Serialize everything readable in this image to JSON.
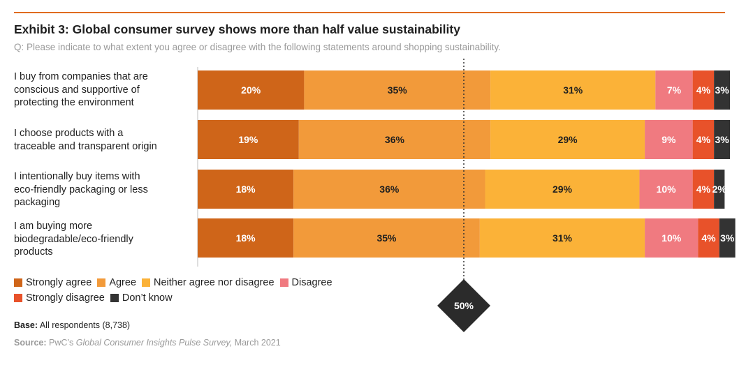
{
  "header": {
    "title": "Exhibit 3: Global consumer survey shows more than half value sustainability",
    "subtitle": "Q: Please indicate to what extent you agree or disagree with the following statements around shopping sustainability."
  },
  "chart_data": {
    "type": "bar",
    "stacked": true,
    "orientation": "horizontal",
    "categories": [
      "I buy from companies that are conscious and supportive of protecting the environment",
      "I choose products with a traceable and transparent origin",
      "I intentionally buy items with eco-friendly packaging or less packaging",
      "I am buying more biodegradable/eco-friendly products"
    ],
    "series": [
      {
        "name": "Strongly agree",
        "color": "#cf6519",
        "values": [
          20,
          19,
          18,
          18
        ]
      },
      {
        "name": "Agree",
        "color": "#f29a3a",
        "values": [
          35,
          36,
          36,
          35
        ]
      },
      {
        "name": "Neither agree nor disagree",
        "color": "#fbb238",
        "values": [
          31,
          29,
          29,
          31
        ]
      },
      {
        "name": "Disagree",
        "color": "#f07a80",
        "values": [
          7,
          9,
          10,
          10
        ]
      },
      {
        "name": "Strongly disagree",
        "color": "#e8522a",
        "values": [
          4,
          4,
          4,
          4
        ]
      },
      {
        "name": "Don’t know",
        "color": "#333333",
        "values": [
          3,
          3,
          2,
          3
        ]
      }
    ],
    "data_labels": [
      [
        "20%",
        "35%",
        "31%",
        "7%",
        "4%",
        "3%"
      ],
      [
        "19%",
        "36%",
        "29%",
        "9%",
        "4%",
        "3%"
      ],
      [
        "18%",
        "36%",
        "29%",
        "10%",
        "4%",
        "2%"
      ],
      [
        "18%",
        "35%",
        "31%",
        "10%",
        "4%",
        "3%"
      ]
    ],
    "reference_line": {
      "value": 50,
      "label": "50%"
    },
    "legend_position": "bottom-left",
    "grid": false
  },
  "row_labels": [
    [
      "I buy from companies that are",
      "conscious and supportive of",
      "protecting the environment"
    ],
    [
      "I choose products with a",
      "traceable and transparent origin"
    ],
    [
      "I intentionally buy items with",
      "eco-friendly packaging or less",
      "packaging"
    ],
    [
      "I am buying more",
      "biodegradable/eco-friendly",
      "products"
    ]
  ],
  "legend": {
    "row1": [
      {
        "label": "Strongly agree",
        "color": "#cf6519"
      },
      {
        "label": "Agree",
        "color": "#f29a3a"
      },
      {
        "label": "Neither agree nor disagree",
        "color": "#fbb238"
      },
      {
        "label": "Disagree",
        "color": "#f07a80"
      }
    ],
    "row2": [
      {
        "label": "Strongly disagree",
        "color": "#e8522a"
      },
      {
        "label": "Don’t know",
        "color": "#333333"
      }
    ]
  },
  "footer": {
    "base_label": "Base:",
    "base_text": "All respondents (8,738)",
    "source_label": "Source:",
    "source_prefix": "PwC’s",
    "source_title": "Global Consumer Insights Pulse Survey,",
    "source_date": "March 2021"
  }
}
